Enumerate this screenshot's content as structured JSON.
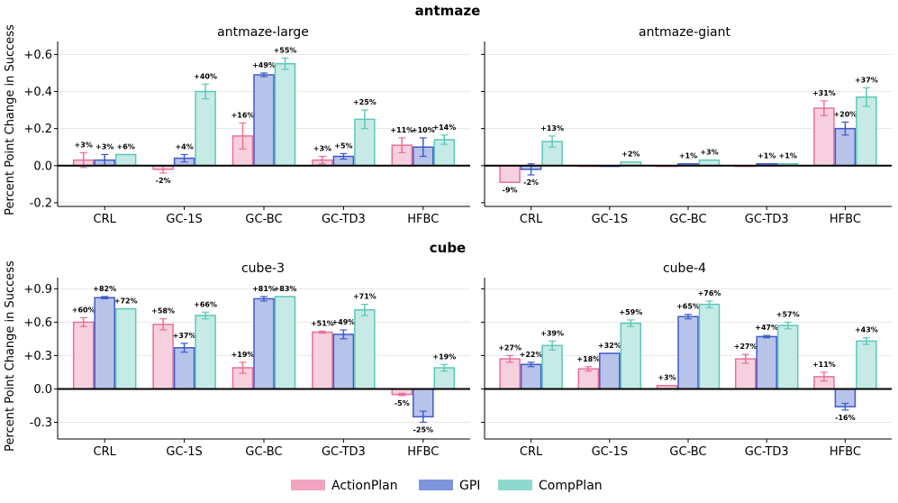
{
  "figure": {
    "ylabel": "Percent Point Change in Success",
    "legend": [
      {
        "name": "ActionPlan",
        "fill": "#f7d0df",
        "edge": "#e8709a",
        "swatch": "#f2a3c0"
      },
      {
        "name": "GPI",
        "fill": "#b8c3ea",
        "edge": "#3f5bc9",
        "swatch": "#7d93db"
      },
      {
        "name": "CompPlan",
        "fill": "#c6ebe6",
        "edge": "#5cc8b8",
        "swatch": "#8ed9ce"
      }
    ],
    "rows": [
      {
        "title": "antmaze"
      },
      {
        "title": "cube"
      }
    ]
  },
  "chart_data": [
    {
      "type": "bar",
      "group": "antmaze",
      "title": "antmaze-large",
      "categories": [
        "CRL",
        "GC-1S",
        "GC-BC",
        "GC-TD3",
        "HFBC"
      ],
      "ylim": [
        -0.22,
        0.67
      ],
      "yticks": [
        -0.2,
        0.0,
        0.2,
        0.4,
        0.6
      ],
      "ytick_labels": [
        "-0.2",
        "0.0",
        "+0.2",
        "+0.4",
        "+0.6"
      ],
      "ylabel": "Percent Point Change in Success",
      "series": [
        {
          "name": "ActionPlan",
          "values": [
            0.03,
            -0.02,
            0.16,
            0.03,
            0.11
          ],
          "err": [
            0.04,
            0.02,
            0.07,
            0.02,
            0.04
          ],
          "labels": [
            "+3%",
            "-2%",
            "+16%",
            "+3%",
            "+11%"
          ]
        },
        {
          "name": "GPI",
          "values": [
            0.03,
            0.04,
            0.49,
            0.05,
            0.1
          ],
          "err": [
            0.03,
            0.02,
            0.01,
            0.015,
            0.05
          ],
          "labels": [
            "+3%",
            "+4%",
            "+49%",
            "+5%",
            "+10%"
          ]
        },
        {
          "name": "CompPlan",
          "values": [
            0.06,
            0.4,
            0.55,
            0.25,
            0.14
          ],
          "err": [
            0.0,
            0.04,
            0.03,
            0.05,
            0.025
          ],
          "labels": [
            "+6%",
            "+40%",
            "+55%",
            "+25%",
            "+14%"
          ]
        }
      ]
    },
    {
      "type": "bar",
      "group": "antmaze",
      "title": "antmaze-giant",
      "categories": [
        "CRL",
        "GC-1S",
        "GC-BC",
        "GC-TD3",
        "HFBC"
      ],
      "ylim": [
        -0.22,
        0.67
      ],
      "yticks": [
        -0.2,
        0.0,
        0.2,
        0.4,
        0.6
      ],
      "ytick_labels": [
        "",
        "",
        "",
        "",
        ""
      ],
      "ylabel": "",
      "series": [
        {
          "name": "ActionPlan",
          "values": [
            -0.09,
            0.0,
            0.0,
            0.0,
            0.31
          ],
          "err": [
            0.0,
            0.0,
            0.0,
            0.0,
            0.04
          ],
          "labels": [
            "-9%",
            "",
            "",
            "",
            "+31%"
          ]
        },
        {
          "name": "GPI",
          "values": [
            -0.02,
            0.0,
            0.01,
            0.01,
            0.2
          ],
          "err": [
            0.03,
            0.0,
            0.0,
            0.0,
            0.035
          ],
          "labels": [
            "-2%",
            "",
            "+1%",
            "+1%",
            "+20%"
          ]
        },
        {
          "name": "CompPlan",
          "values": [
            0.13,
            0.02,
            0.03,
            0.01,
            0.37
          ],
          "err": [
            0.03,
            0.0,
            0.0,
            0.0,
            0.05
          ],
          "labels": [
            "+13%",
            "+2%",
            "+3%",
            "+1%",
            "+37%"
          ]
        }
      ]
    },
    {
      "type": "bar",
      "group": "cube",
      "title": "cube-3",
      "categories": [
        "CRL",
        "GC-1S",
        "GC-BC",
        "GC-TD3",
        "HFBC"
      ],
      "ylim": [
        -0.45,
        1.0
      ],
      "yticks": [
        -0.3,
        0.0,
        0.3,
        0.6,
        0.9
      ],
      "ytick_labels": [
        "-0.3",
        "0.0",
        "+0.3",
        "+0.6",
        "+0.9"
      ],
      "ylabel": "Percent Point Change in Success",
      "series": [
        {
          "name": "ActionPlan",
          "values": [
            0.6,
            0.58,
            0.19,
            0.51,
            -0.05
          ],
          "err": [
            0.04,
            0.05,
            0.05,
            0.01,
            0.01
          ],
          "labels": [
            "+60%",
            "+58%",
            "+19%",
            "+51%",
            "-5%"
          ]
        },
        {
          "name": "GPI",
          "values": [
            0.82,
            0.37,
            0.81,
            0.49,
            -0.25
          ],
          "err": [
            0.01,
            0.04,
            0.02,
            0.04,
            0.05
          ],
          "labels": [
            "+82%",
            "+37%",
            "+81%",
            "+49%",
            "-25%"
          ]
        },
        {
          "name": "CompPlan",
          "values": [
            0.72,
            0.66,
            0.83,
            0.71,
            0.19
          ],
          "err": [
            0.0,
            0.03,
            0.0,
            0.05,
            0.03
          ],
          "labels": [
            "+72%",
            "+66%",
            "+83%",
            "+71%",
            "+19%"
          ]
        }
      ]
    },
    {
      "type": "bar",
      "group": "cube",
      "title": "cube-4",
      "categories": [
        "CRL",
        "GC-1S",
        "GC-BC",
        "GC-TD3",
        "HFBC"
      ],
      "ylim": [
        -0.45,
        1.0
      ],
      "yticks": [
        -0.3,
        0.0,
        0.3,
        0.6,
        0.9
      ],
      "ytick_labels": [
        "",
        "",
        "",
        "",
        ""
      ],
      "ylabel": "",
      "series": [
        {
          "name": "ActionPlan",
          "values": [
            0.27,
            0.18,
            0.03,
            0.27,
            0.11
          ],
          "err": [
            0.03,
            0.02,
            0.0,
            0.04,
            0.04
          ],
          "labels": [
            "+27%",
            "+18%",
            "+3%",
            "+27%",
            "+11%"
          ]
        },
        {
          "name": "GPI",
          "values": [
            0.22,
            0.32,
            0.65,
            0.47,
            -0.16
          ],
          "err": [
            0.02,
            0.0,
            0.02,
            0.01,
            0.03
          ],
          "labels": [
            "+22%",
            "+32%",
            "+65%",
            "+47%",
            "-16%"
          ]
        },
        {
          "name": "CompPlan",
          "values": [
            0.39,
            0.59,
            0.76,
            0.57,
            0.43
          ],
          "err": [
            0.04,
            0.03,
            0.03,
            0.03,
            0.03
          ],
          "labels": [
            "+39%",
            "+59%",
            "+76%",
            "+57%",
            "+43%"
          ]
        }
      ]
    }
  ]
}
